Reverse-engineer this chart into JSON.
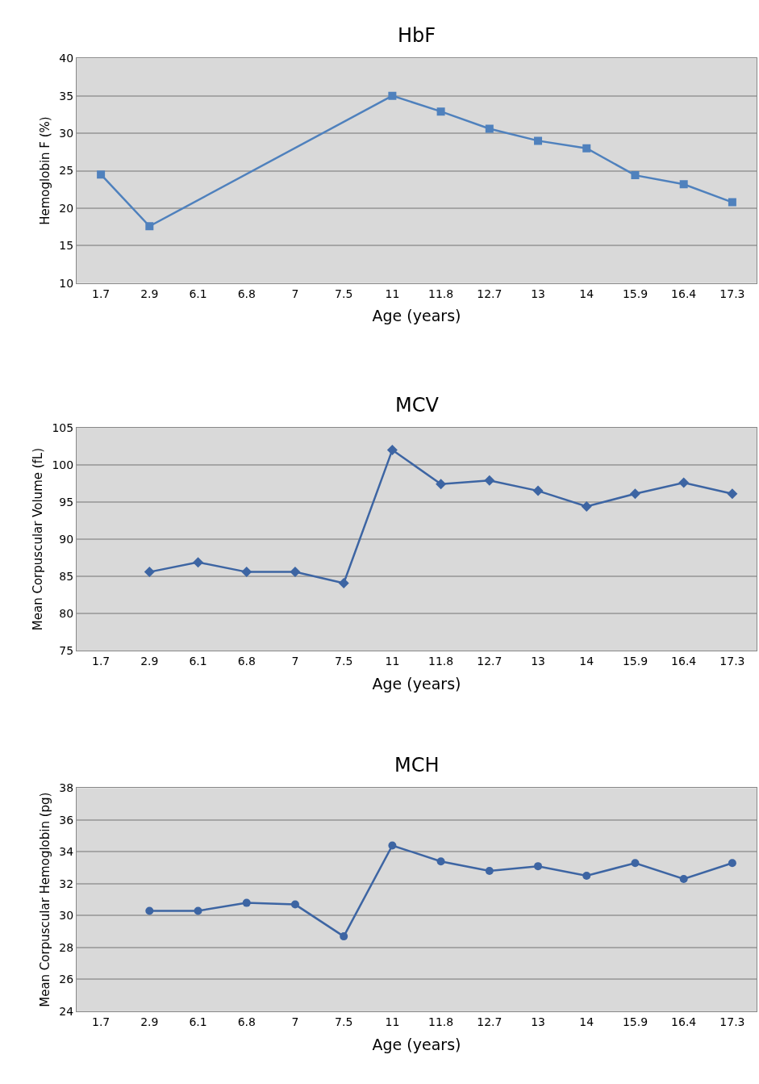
{
  "chart_data": [
    {
      "type": "line",
      "title": "HbF",
      "xlabel": "Age (years)",
      "ylabel": "Hemoglobin F (%)",
      "categories": [
        "1.7",
        "2.9",
        "6.1",
        "6.8",
        "7",
        "7.5",
        "11",
        "11.8",
        "12.7",
        "13",
        "14",
        "15.9",
        "16.4",
        "17.3"
      ],
      "series": [
        {
          "color": "#4f81bd",
          "values": [
            24.5,
            17.6,
            null,
            null,
            null,
            null,
            35,
            32.9,
            30.6,
            29,
            28,
            24.4,
            23.2,
            20.8
          ]
        }
      ],
      "ylim": [
        10,
        40
      ],
      "yticks": [
        10,
        15,
        20,
        25,
        30,
        35,
        40
      ],
      "grid": "y",
      "marker": "square"
    },
    {
      "type": "line",
      "title": "MCV",
      "xlabel": "Age (years)",
      "ylabel": "Mean Corpuscular Volume (fL)",
      "categories": [
        "1.7",
        "2.9",
        "6.1",
        "6.8",
        "7",
        "7.5",
        "11",
        "11.8",
        "12.7",
        "13",
        "14",
        "15.9",
        "16.4",
        "17.3"
      ],
      "series": [
        {
          "color": "#3d65a3",
          "values": [
            null,
            85.6,
            86.9,
            85.6,
            85.6,
            84.1,
            102,
            97.4,
            97.9,
            96.5,
            94.4,
            96.1,
            97.6,
            96.1
          ]
        }
      ],
      "ylim": [
        75,
        105
      ],
      "yticks": [
        75,
        80,
        85,
        90,
        95,
        100,
        105
      ],
      "grid": "y",
      "marker": "diamond"
    },
    {
      "type": "line",
      "title": "MCH",
      "xlabel": "Age (years)",
      "ylabel": "Mean Corpuscular Hemoglobin (pg)",
      "categories": [
        "1.7",
        "2.9",
        "6.1",
        "6.8",
        "7",
        "7.5",
        "11",
        "11.8",
        "12.7",
        "13",
        "14",
        "15.9",
        "16.4",
        "17.3"
      ],
      "series": [
        {
          "color": "#3d65a3",
          "values": [
            null,
            30.3,
            30.3,
            30.8,
            30.7,
            28.7,
            34.4,
            33.4,
            32.8,
            33.1,
            32.5,
            33.3,
            32.3,
            33.3
          ]
        }
      ],
      "ylim": [
        24,
        38
      ],
      "yticks": [
        24,
        26,
        28,
        30,
        32,
        34,
        36,
        38
      ],
      "grid": "y",
      "marker": "circle"
    }
  ]
}
